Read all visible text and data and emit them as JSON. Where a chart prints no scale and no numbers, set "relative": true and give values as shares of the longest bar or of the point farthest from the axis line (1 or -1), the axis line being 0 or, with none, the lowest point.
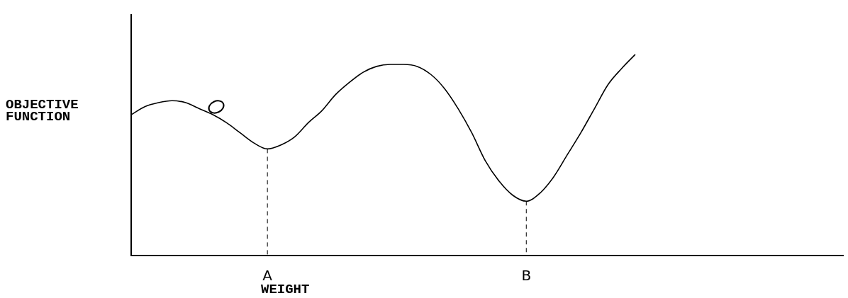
{
  "chart_data": {
    "type": "line",
    "relative": true,
    "xlabel": "WEIGHT",
    "ylabel": "OBJECTIVE FUNCTION",
    "categories": [
      null,
      null,
      null,
      null,
      null,
      null,
      null,
      null,
      null,
      null,
      "A",
      null,
      null,
      null,
      null,
      null,
      null,
      null,
      null,
      null,
      null,
      null,
      null,
      null,
      null,
      null,
      null,
      null,
      null,
      "B",
      null,
      null,
      null,
      null,
      null,
      null,
      null,
      null
    ],
    "series": [
      {
        "color": "#000000",
        "values": [
          0.7,
          0.74,
          0.76,
          0.77,
          0.76,
          0.73,
          0.7,
          0.66,
          0.61,
          0.56,
          0.53,
          0.55,
          0.59,
          0.66,
          0.72,
          0.8,
          0.86,
          0.91,
          0.94,
          0.95,
          0.95,
          0.94,
          0.9,
          0.83,
          0.73,
          0.61,
          0.47,
          0.37,
          0.3,
          0.27,
          0.31,
          0.39,
          0.5,
          0.61,
          0.73,
          0.85,
          0.93,
          1.0
        ]
      }
    ],
    "ref_lines": [
      {
        "axis": "x",
        "value": "A",
        "color": "#000000",
        "line_style": "dashed"
      },
      {
        "axis": "x",
        "value": "B",
        "color": "#000000",
        "line_style": "dashed"
      }
    ],
    "grid": false,
    "legend": false,
    "marker": "none",
    "line_style": "solid"
  }
}
